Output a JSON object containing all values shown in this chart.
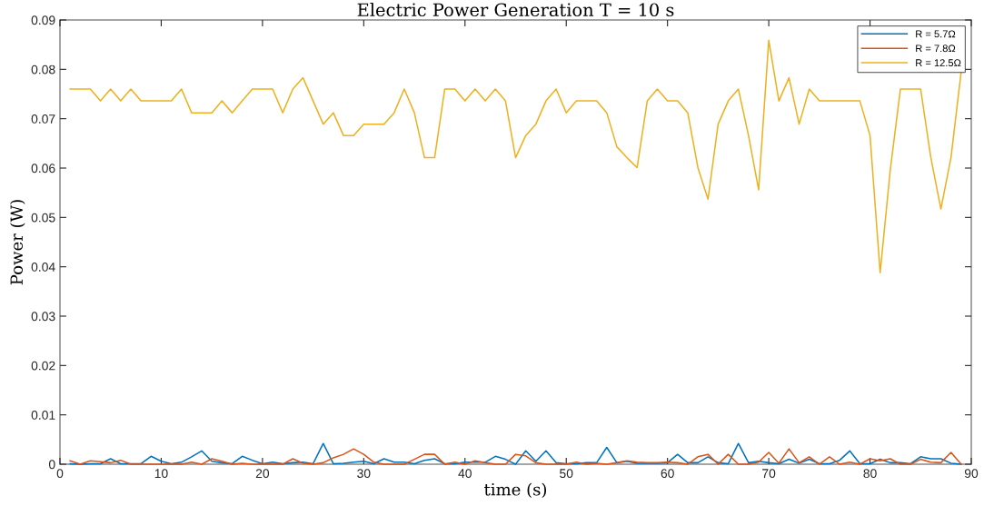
{
  "chart_data": {
    "type": "line",
    "title": "Electric Power Generation T = 10 s",
    "xlabel": "time (s)",
    "ylabel": "Power (W)",
    "x": [
      1,
      2,
      3,
      4,
      5,
      6,
      7,
      8,
      9,
      10,
      11,
      12,
      13,
      14,
      15,
      16,
      17,
      18,
      19,
      20,
      21,
      22,
      23,
      24,
      25,
      26,
      27,
      28,
      29,
      30,
      31,
      32,
      33,
      34,
      35,
      36,
      37,
      38,
      39,
      40,
      41,
      42,
      43,
      44,
      45,
      46,
      47,
      48,
      49,
      50,
      51,
      52,
      53,
      54,
      55,
      56,
      57,
      58,
      59,
      60,
      61,
      62,
      63,
      64,
      65,
      66,
      67,
      68,
      69,
      70,
      71,
      72,
      73,
      74,
      75,
      76,
      77,
      78,
      79,
      80,
      81,
      82,
      83,
      84,
      85,
      86,
      87,
      88,
      89
    ],
    "series": [
      {
        "name": "R = 5.7Ω",
        "color": "#0072bd",
        "values": [
          0.0001,
          0,
          0.0001,
          0.0001,
          0.0011,
          0.0001,
          0.0001,
          0.0001,
          0.0016,
          0.0006,
          0.0001,
          0.0004,
          0.0015,
          0.0027,
          0.0006,
          0.0003,
          0.0001,
          0.0016,
          0.0008,
          0.0001,
          0.0004,
          0.0001,
          0.0003,
          0.0004,
          0.0001,
          0.0042,
          0.0001,
          0.0002,
          0.0004,
          0.0006,
          0.0001,
          0.0011,
          0.0004,
          0.0004,
          0.0001,
          0.0008,
          0.0011,
          0.0001,
          0.0001,
          0.0004,
          0.0004,
          0.0004,
          0.0016,
          0.001,
          0,
          0.0027,
          0.0006,
          0.0027,
          0.0003,
          0.0001,
          0.0001,
          0.0003,
          0.0003,
          0.0034,
          0.0003,
          0.0006,
          0.0002,
          0.0002,
          0.0002,
          0.0003,
          0.002,
          0.0003,
          0.0003,
          0.0015,
          0.0003,
          0.0001,
          0.0042,
          0.0003,
          0.0006,
          0.0003,
          0.0001,
          0.001,
          0.0002,
          0.001,
          0.0001,
          0.0001,
          0.0008,
          0.0027,
          0.0001,
          0.0001,
          0.001,
          0.0003,
          0.0003,
          0.0001,
          0.0015,
          0.0011,
          0.0011,
          0.0002,
          0
        ]
      },
      {
        "name": "R = 7.8Ω",
        "color": "#d95319",
        "values": [
          0.0007,
          0,
          0.0007,
          0.0005,
          0.0003,
          0.0008,
          0,
          0,
          0,
          0,
          0,
          0,
          0.0004,
          0,
          0.0011,
          0.0006,
          0,
          0.0002,
          0,
          0,
          0,
          0,
          0.0011,
          0.0002,
          0,
          0.0003,
          0.0013,
          0.002,
          0.0031,
          0.002,
          0.0004,
          0,
          0,
          0,
          0.001,
          0.002,
          0.002,
          0,
          0.0004,
          0,
          0.0007,
          0.0003,
          0,
          0,
          0.002,
          0.0017,
          0.0003,
          0,
          0,
          0,
          0.0004,
          0,
          0.0002,
          0,
          0.0003,
          0.0007,
          0.0004,
          0.0003,
          0.0003,
          0.0004,
          0.0003,
          0,
          0.0015,
          0.002,
          0,
          0.002,
          0,
          0,
          0.0004,
          0.0024,
          0.0002,
          0.0031,
          0.0003,
          0.0015,
          0,
          0.0015,
          0,
          0.0004,
          0,
          0.0011,
          0.0007,
          0.0011,
          0,
          0,
          0.001,
          0.0004,
          0.0003,
          0.0024,
          0
        ]
      },
      {
        "name": "R = 12.5Ω",
        "color": "#edb120",
        "values": [
          0.076,
          0.076,
          0.076,
          0.0736,
          0.076,
          0.0736,
          0.076,
          0.0736,
          0.0736,
          0.0736,
          0.0736,
          0.076,
          0.0712,
          0.0712,
          0.0712,
          0.0736,
          0.0712,
          0.0736,
          0.076,
          0.076,
          0.076,
          0.0712,
          0.076,
          0.0783,
          0.0736,
          0.0689,
          0.0712,
          0.0666,
          0.0666,
          0.0689,
          0.0689,
          0.0689,
          0.0712,
          0.076,
          0.0712,
          0.0621,
          0.0621,
          0.076,
          0.076,
          0.0736,
          0.076,
          0.0736,
          0.076,
          0.0736,
          0.0621,
          0.0666,
          0.0689,
          0.0736,
          0.076,
          0.0712,
          0.0736,
          0.0736,
          0.0736,
          0.0712,
          0.0643,
          0.0621,
          0.0601,
          0.0736,
          0.076,
          0.0736,
          0.0736,
          0.0712,
          0.0601,
          0.0537,
          0.0689,
          0.0736,
          0.076,
          0.0666,
          0.0556,
          0.0859,
          0.0736,
          0.0783,
          0.0689,
          0.076,
          0.0736,
          0.0736,
          0.0736,
          0.0736,
          0.0736,
          0.0666,
          0.0388,
          0.0596,
          0.076,
          0.076,
          0.076,
          0.0622,
          0.0517,
          0.0622,
          0.0795
        ]
      }
    ],
    "xlim": [
      0,
      90
    ],
    "xticks": [
      0,
      10,
      20,
      30,
      40,
      50,
      60,
      70,
      80,
      90
    ],
    "ylim": [
      0,
      0.09
    ],
    "yticks": [
      0,
      0.01,
      0.02,
      0.03,
      0.04,
      0.05,
      0.06,
      0.07,
      0.08,
      0.09
    ],
    "grid": false,
    "legend": "top right",
    "marker": "none",
    "line_style": "solid"
  }
}
